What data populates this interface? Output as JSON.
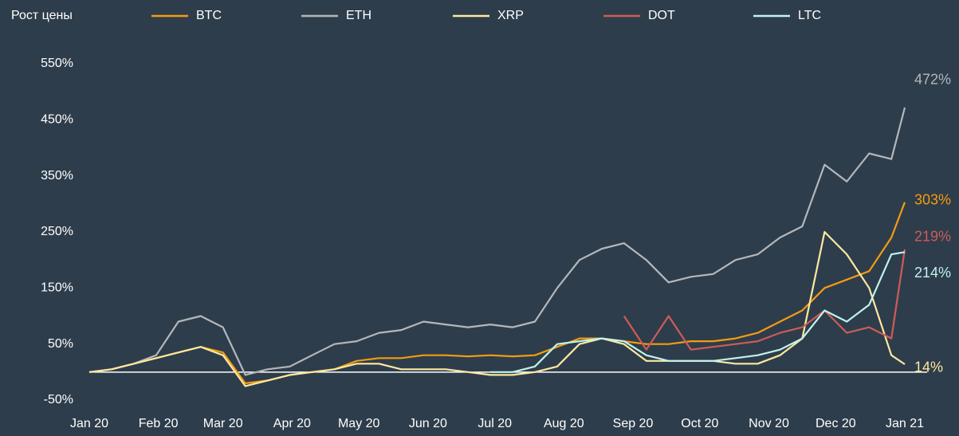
{
  "chart_data": {
    "type": "line",
    "title": "Рост цены",
    "x": [
      0,
      10,
      20,
      30,
      40,
      50,
      60,
      70,
      80,
      90,
      100,
      110,
      120,
      130,
      140,
      150,
      160,
      170,
      180,
      190,
      200,
      210,
      220,
      230,
      240,
      250,
      260,
      270,
      280,
      290,
      300,
      310,
      320,
      330,
      340,
      350,
      360,
      366
    ],
    "xlim": [
      0,
      366
    ],
    "xticks": [
      {
        "value": 0,
        "label": "Jan 20"
      },
      {
        "value": 31,
        "label": "Feb 20"
      },
      {
        "value": 60,
        "label": "Mar 20"
      },
      {
        "value": 91,
        "label": "Apr 20"
      },
      {
        "value": 121,
        "label": "May 20"
      },
      {
        "value": 152,
        "label": "Jun 20"
      },
      {
        "value": 182,
        "label": "Jul 20"
      },
      {
        "value": 213,
        "label": "Aug 20"
      },
      {
        "value": 244,
        "label": "Sep 20"
      },
      {
        "value": 274,
        "label": "Oct 20"
      },
      {
        "value": 305,
        "label": "Nov 20"
      },
      {
        "value": 335,
        "label": "Dec 20"
      },
      {
        "value": 366,
        "label": "Jan 21"
      }
    ],
    "ylim": [
      -50,
      550
    ],
    "yticks": [
      {
        "value": -50,
        "label": "-50%"
      },
      {
        "value": 50,
        "label": "50%"
      },
      {
        "value": 150,
        "label": "150%"
      },
      {
        "value": 250,
        "label": "250%"
      },
      {
        "value": 350,
        "label": "350%"
      },
      {
        "value": 450,
        "label": "450%"
      },
      {
        "value": 550,
        "label": "550%"
      }
    ],
    "series": [
      {
        "name": "BTC",
        "color": "#f39c12",
        "values": [
          0,
          5,
          15,
          25,
          35,
          45,
          35,
          -20,
          -15,
          -5,
          0,
          5,
          20,
          25,
          25,
          30,
          30,
          28,
          30,
          28,
          30,
          45,
          60,
          60,
          55,
          50,
          50,
          55,
          55,
          60,
          70,
          90,
          110,
          150,
          165,
          180,
          240,
          303
        ],
        "value_labels": [
          null,
          null,
          null,
          null,
          null,
          null,
          null,
          null,
          null,
          null,
          null,
          null,
          null,
          null,
          null,
          null,
          null,
          null,
          null,
          null,
          null,
          null,
          null,
          null,
          null,
          null,
          null,
          null,
          null,
          null,
          null,
          null,
          null,
          null,
          null,
          null,
          null,
          "303%"
        ]
      },
      {
        "name": "ETH",
        "color": "#b4b7bb",
        "values": [
          0,
          5,
          15,
          30,
          90,
          100,
          80,
          -5,
          5,
          10,
          30,
          50,
          55,
          70,
          75,
          90,
          85,
          80,
          85,
          80,
          90,
          150,
          200,
          220,
          230,
          200,
          160,
          170,
          175,
          200,
          210,
          240,
          260,
          370,
          340,
          390,
          380,
          472
        ],
        "value_labels": [
          null,
          null,
          null,
          null,
          null,
          null,
          null,
          null,
          null,
          null,
          null,
          null,
          null,
          null,
          null,
          null,
          null,
          null,
          null,
          null,
          null,
          null,
          null,
          null,
          null,
          null,
          null,
          null,
          null,
          null,
          null,
          null,
          null,
          null,
          null,
          null,
          null,
          "472%"
        ]
      },
      {
        "name": "XRP",
        "color": "#fde9a0",
        "values": [
          0,
          5,
          15,
          25,
          35,
          45,
          30,
          -25,
          -15,
          -5,
          0,
          5,
          15,
          15,
          5,
          5,
          5,
          0,
          -5,
          -5,
          0,
          10,
          50,
          60,
          50,
          20,
          20,
          20,
          20,
          15,
          15,
          30,
          60,
          250,
          210,
          150,
          30,
          14
        ],
        "value_labels": [
          null,
          null,
          null,
          null,
          null,
          null,
          null,
          null,
          null,
          null,
          null,
          null,
          null,
          null,
          null,
          null,
          null,
          null,
          null,
          null,
          null,
          null,
          null,
          null,
          null,
          null,
          null,
          null,
          null,
          null,
          null,
          null,
          null,
          null,
          null,
          null,
          null,
          "14%"
        ]
      },
      {
        "name": "DOT",
        "color": "#cd5c57",
        "values": [
          null,
          null,
          null,
          null,
          null,
          null,
          null,
          null,
          null,
          null,
          null,
          null,
          null,
          null,
          null,
          null,
          null,
          null,
          null,
          null,
          null,
          null,
          null,
          null,
          100,
          40,
          100,
          40,
          45,
          50,
          55,
          70,
          80,
          110,
          70,
          80,
          60,
          219
        ],
        "value_labels": [
          null,
          null,
          null,
          null,
          null,
          null,
          null,
          null,
          null,
          null,
          null,
          null,
          null,
          null,
          null,
          null,
          null,
          null,
          null,
          null,
          null,
          null,
          null,
          null,
          null,
          null,
          null,
          null,
          null,
          null,
          null,
          null,
          null,
          null,
          null,
          null,
          null,
          "219%"
        ]
      },
      {
        "name": "LTC",
        "color": "#bff3ee",
        "values": [
          null,
          null,
          null,
          null,
          null,
          null,
          null,
          null,
          null,
          null,
          null,
          null,
          null,
          null,
          null,
          null,
          null,
          null,
          0,
          0,
          10,
          50,
          55,
          60,
          55,
          30,
          20,
          20,
          20,
          25,
          30,
          40,
          60,
          110,
          90,
          120,
          210,
          214
        ],
        "value_labels": [
          null,
          null,
          null,
          null,
          null,
          null,
          null,
          null,
          null,
          null,
          null,
          null,
          null,
          null,
          null,
          null,
          null,
          null,
          null,
          null,
          null,
          null,
          null,
          null,
          null,
          null,
          null,
          null,
          null,
          null,
          null,
          null,
          null,
          null,
          null,
          null,
          null,
          "214%"
        ]
      }
    ]
  }
}
